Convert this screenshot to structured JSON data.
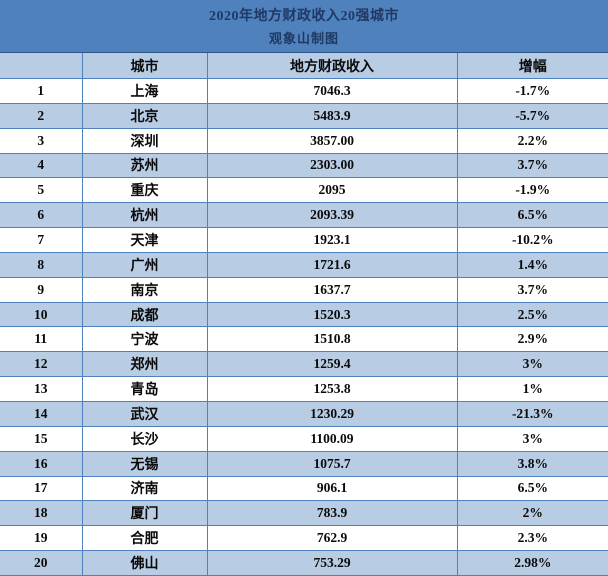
{
  "banner": {
    "title": "2020年地方财政收入20强城市",
    "subtitle": "观象山制图"
  },
  "colors": {
    "banner_bg": "#4f81bd",
    "banner_text": "#1f3864",
    "stripe_blue": "#b8cce4",
    "row_white": "#ffffff",
    "border_blue": "#4f81bd",
    "text": "#0a0a0a"
  },
  "chart_data": {
    "type": "table",
    "title": "2020年地方财政收入20强城市",
    "subtitle": "观象山制图",
    "columns": [
      "",
      "城市",
      "地方财政收入",
      "增幅"
    ],
    "rows": [
      {
        "rank": "1",
        "city": "上海",
        "revenue": "7046.3",
        "growth": "-1.7%"
      },
      {
        "rank": "2",
        "city": "北京",
        "revenue": "5483.9",
        "growth": "-5.7%"
      },
      {
        "rank": "3",
        "city": "深圳",
        "revenue": "3857.00",
        "growth": "2.2%"
      },
      {
        "rank": "4",
        "city": "苏州",
        "revenue": "2303.00",
        "growth": "3.7%"
      },
      {
        "rank": "5",
        "city": "重庆",
        "revenue": "2095",
        "growth": "-1.9%"
      },
      {
        "rank": "6",
        "city": "杭州",
        "revenue": "2093.39",
        "growth": "6.5%"
      },
      {
        "rank": "7",
        "city": "天津",
        "revenue": "1923.1",
        "growth": "-10.2%"
      },
      {
        "rank": "8",
        "city": "广州",
        "revenue": "1721.6",
        "growth": "1.4%"
      },
      {
        "rank": "9",
        "city": "南京",
        "revenue": "1637.7",
        "growth": "3.7%"
      },
      {
        "rank": "10",
        "city": "成都",
        "revenue": "1520.3",
        "growth": "2.5%"
      },
      {
        "rank": "11",
        "city": "宁波",
        "revenue": "1510.8",
        "growth": "2.9%"
      },
      {
        "rank": "12",
        "city": "郑州",
        "revenue": "1259.4",
        "growth": "3%"
      },
      {
        "rank": "13",
        "city": "青岛",
        "revenue": "1253.8",
        "growth": "1%"
      },
      {
        "rank": "14",
        "city": "武汉",
        "revenue": "1230.29",
        "growth": "-21.3%"
      },
      {
        "rank": "15",
        "city": "长沙",
        "revenue": "1100.09",
        "growth": "3%"
      },
      {
        "rank": "16",
        "city": "无锡",
        "revenue": "1075.7",
        "growth": "3.8%"
      },
      {
        "rank": "17",
        "city": "济南",
        "revenue": "906.1",
        "growth": "6.5%"
      },
      {
        "rank": "18",
        "city": "厦门",
        "revenue": "783.9",
        "growth": "2%"
      },
      {
        "rank": "19",
        "city": "合肥",
        "revenue": "762.9",
        "growth": "2.3%"
      },
      {
        "rank": "20",
        "city": "佛山",
        "revenue": "753.29",
        "growth": "2.98%"
      }
    ]
  }
}
